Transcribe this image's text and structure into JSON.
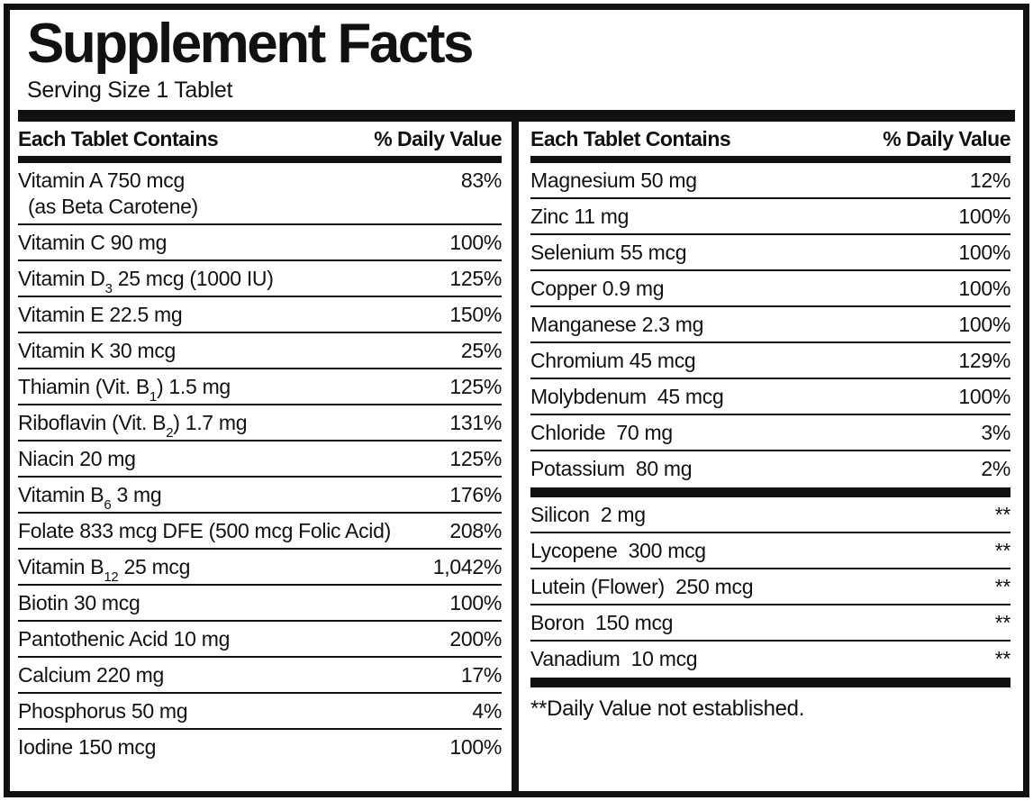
{
  "title": "Supplement Facts",
  "serving_size": "Serving Size 1 Tablet",
  "table_header": {
    "contains": "Each Tablet Contains",
    "daily_value": "% Daily Value"
  },
  "footnote": "**Daily Value not established.",
  "colors": {
    "ink": "#111111",
    "background": "#ffffff"
  },
  "columns": [
    {
      "rows": [
        {
          "parts": [
            {
              "t": "Vitamin A 750 mcg"
            }
          ],
          "line2": "(as Beta Carotene)",
          "value": "83%"
        },
        {
          "parts": [
            {
              "t": "Vitamin C 90 mg"
            }
          ],
          "value": "100%"
        },
        {
          "parts": [
            {
              "t": "Vitamin D"
            },
            {
              "t": "3",
              "sub": true
            },
            {
              "t": " 25 mcg (1000 IU)"
            }
          ],
          "value": "125%"
        },
        {
          "parts": [
            {
              "t": "Vitamin E 22.5 mg"
            }
          ],
          "value": "150%"
        },
        {
          "parts": [
            {
              "t": "Vitamin K 30 mcg"
            }
          ],
          "value": "25%"
        },
        {
          "parts": [
            {
              "t": "Thiamin (Vit. B"
            },
            {
              "t": "1",
              "sub": true
            },
            {
              "t": ") 1.5 mg"
            }
          ],
          "value": "125%"
        },
        {
          "parts": [
            {
              "t": "Riboflavin (Vit. B"
            },
            {
              "t": "2",
              "sub": true
            },
            {
              "t": ") 1.7 mg"
            }
          ],
          "value": "131%"
        },
        {
          "parts": [
            {
              "t": "Niacin 20 mg"
            }
          ],
          "value": "125%"
        },
        {
          "parts": [
            {
              "t": "Vitamin B"
            },
            {
              "t": "6",
              "sub": true
            },
            {
              "t": " 3 mg"
            }
          ],
          "value": "176%"
        },
        {
          "parts": [
            {
              "t": "Folate 833 mcg DFE (500 mcg Folic Acid)"
            }
          ],
          "value": "208%"
        },
        {
          "parts": [
            {
              "t": "Vitamin B"
            },
            {
              "t": "12",
              "sub": true
            },
            {
              "t": " 25 mcg"
            }
          ],
          "value": "1,042%"
        },
        {
          "parts": [
            {
              "t": "Biotin 30 mcg"
            }
          ],
          "value": "100%"
        },
        {
          "parts": [
            {
              "t": "Pantothenic Acid 10 mg"
            }
          ],
          "value": "200%"
        },
        {
          "parts": [
            {
              "t": "Calcium 220 mg"
            }
          ],
          "value": "17%"
        },
        {
          "parts": [
            {
              "t": "Phosphorus 50 mg"
            }
          ],
          "value": "4%"
        },
        {
          "parts": [
            {
              "t": "Iodine 150 mcg"
            }
          ],
          "value": "100%",
          "no_border": true
        }
      ]
    },
    {
      "rows": [
        {
          "parts": [
            {
              "t": "Magnesium 50 mg"
            }
          ],
          "value": "12%"
        },
        {
          "parts": [
            {
              "t": "Zinc 11 mg"
            }
          ],
          "value": "100%"
        },
        {
          "parts": [
            {
              "t": "Selenium 55 mcg"
            }
          ],
          "value": "100%"
        },
        {
          "parts": [
            {
              "t": "Copper 0.9 mg"
            }
          ],
          "value": "100%"
        },
        {
          "parts": [
            {
              "t": "Manganese 2.3 mg"
            }
          ],
          "value": "100%"
        },
        {
          "parts": [
            {
              "t": "Chromium 45 mcg"
            }
          ],
          "value": "129%"
        },
        {
          "parts": [
            {
              "t": "Molybdenum  45 mcg"
            }
          ],
          "value": "100%"
        },
        {
          "parts": [
            {
              "t": "Chloride  70 mg"
            }
          ],
          "value": "3%"
        },
        {
          "parts": [
            {
              "t": "Potassium  80 mg"
            }
          ],
          "value": "2%",
          "no_border": true,
          "bar_after": true
        },
        {
          "parts": [
            {
              "t": "Silicon  2 mg"
            }
          ],
          "value": "**"
        },
        {
          "parts": [
            {
              "t": "Lycopene  300 mcg"
            }
          ],
          "value": "**"
        },
        {
          "parts": [
            {
              "t": "Lutein (Flower)  250 mcg"
            }
          ],
          "value": "**"
        },
        {
          "parts": [
            {
              "t": "Boron  150 mcg"
            }
          ],
          "value": "**"
        },
        {
          "parts": [
            {
              "t": "Vanadium  10 mcg"
            }
          ],
          "value": "**",
          "no_border": true,
          "bar_after": true
        }
      ]
    }
  ]
}
